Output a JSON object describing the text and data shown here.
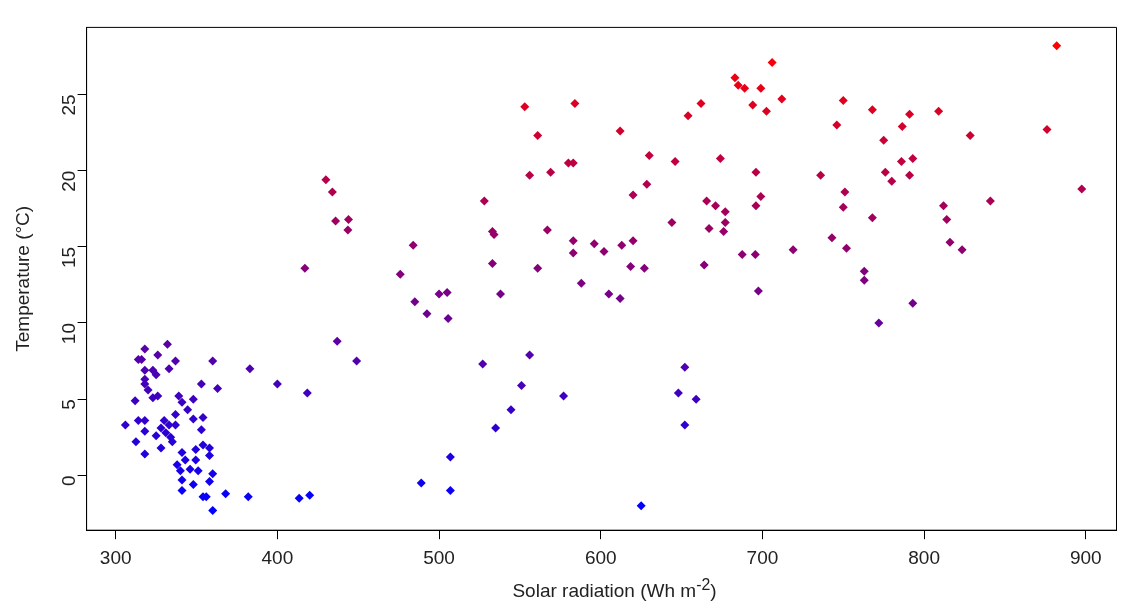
{
  "chart_data": {
    "type": "scatter",
    "xlabel": "Solar radiation (Wh m$^{-2}$)",
    "ylabel": "Temperature (°C)",
    "xlim": [
      282,
      919
    ],
    "xticks": [
      300,
      400,
      500,
      600,
      700,
      800,
      900
    ],
    "ylim": [
      -3.6,
      29.4
    ],
    "yticks": [
      0,
      5,
      10,
      15,
      20,
      25
    ],
    "grid": false,
    "legend": false,
    "marker": "diamond",
    "x": [
      318,
      332,
      314,
      316,
      326,
      337,
      360,
      383,
      437,
      449,
      333,
      323,
      318,
      325,
      318,
      318,
      353,
      363,
      400,
      418.5,
      320,
      323,
      326,
      312,
      339,
      341,
      348,
      344.5,
      337,
      354,
      348,
      306,
      314,
      318,
      330,
      333,
      328,
      337,
      318,
      353,
      331,
      325,
      334,
      312.5,
      335,
      328,
      318,
      341,
      354,
      358,
      349.5,
      358,
      343,
      349.5,
      338,
      346,
      351,
      340,
      360,
      341,
      358,
      348,
      341,
      368,
      354,
      356,
      382,
      360,
      413.5,
      420,
      556,
      569,
      580,
      583,
      646,
      628.5,
      620,
      528,
      533,
      534,
      567,
      644,
      484,
      583,
      596,
      602,
      613,
      620,
      583,
      533,
      561,
      618.5,
      627,
      476,
      588,
      485,
      500,
      505,
      538,
      605,
      612,
      492.5,
      505.6,
      527,
      556,
      551,
      577,
      544.5,
      535,
      652,
      648,
      659,
      652,
      507,
      489,
      507,
      625,
      430,
      434,
      436,
      444,
      443.6,
      417,
      553,
      584,
      561,
      612,
      630,
      674,
      696,
      665.5,
      671,
      677,
      677,
      676,
      667,
      696,
      699,
      662,
      654,
      694,
      702.5,
      712,
      687.5,
      695.6,
      719,
      664,
      697.5,
      882,
      706,
      683,
      685,
      689,
      699,
      750,
      768,
      746,
      791,
      786.5,
      809,
      775,
      828.5,
      876,
      786,
      793,
      776,
      791,
      780,
      736,
      897.5,
      751,
      750,
      768,
      812,
      841,
      814,
      816,
      823.5,
      743,
      752,
      763,
      763,
      793,
      772
    ],
    "values": [
      8.3,
      8.6,
      7.6,
      7.6,
      7.9,
      7.5,
      7.5,
      7.0,
      8.8,
      7.5,
      7.0,
      6.9,
      6.9,
      6.6,
      6.3,
      6.0,
      6.0,
      5.7,
      6.0,
      5.4,
      5.6,
      5.1,
      5.2,
      4.9,
      5.2,
      4.8,
      5.0,
      4.3,
      4.0,
      3.8,
      3.7,
      3.3,
      3.6,
      3.6,
      3.6,
      3.3,
      3.1,
      3.3,
      2.9,
      3.0,
      2.8,
      2.6,
      2.5,
      2.2,
      2.2,
      1.8,
      1.4,
      1.5,
      2.0,
      1.8,
      1.7,
      1.3,
      1.0,
      1.0,
      0.7,
      0.4,
      0.3,
      0.3,
      0.1,
      -0.3,
      -0.4,
      -0.6,
      -1.0,
      -1.2,
      -1.4,
      -1.4,
      -1.4,
      -2.3,
      -1.5,
      -1.3,
      19.7,
      19.9,
      20.5,
      20.5,
      20.6,
      19.1,
      18.4,
      18.0,
      16.0,
      15.8,
      16.1,
      16.6,
      15.1,
      15.4,
      15.2,
      14.7,
      15.1,
      15.4,
      14.6,
      13.9,
      13.6,
      13.7,
      13.6,
      13.2,
      12.6,
      11.4,
      11.9,
      12.0,
      11.9,
      11.9,
      11.6,
      10.6,
      10.3,
      7.3,
      7.9,
      5.9,
      5.2,
      4.3,
      3.1,
      7.1,
      5.4,
      5.0,
      3.3,
      1.2,
      -0.5,
      -1.0,
      -2.0,
      19.4,
      18.6,
      16.7,
      16.8,
      16.1,
      13.6,
      24.2,
      24.4,
      22.3,
      22.6,
      21.0,
      20.8,
      19.9,
      18.0,
      17.7,
      17.3,
      16.6,
      16.0,
      16.2,
      17.7,
      18.3,
      24.4,
      23.6,
      24.3,
      23.9,
      24.7,
      14.5,
      14.5,
      14.8,
      13.8,
      12.1,
      28.2,
      27.1,
      26.1,
      25.6,
      25.4,
      25.4,
      24.6,
      24.0,
      23.0,
      23.7,
      22.9,
      23.9,
      22.0,
      22.3,
      22.7,
      20.6,
      20.8,
      19.9,
      19.7,
      19.3,
      19.7,
      18.8,
      18.6,
      17.6,
      16.9,
      17.7,
      18.0,
      16.8,
      15.3,
      14.8,
      15.6,
      14.9,
      13.4,
      12.8,
      11.3,
      10.0
    ],
    "colors": [
      "#5900a6",
      "#5b00a4",
      "#5300ac",
      "#5300ac",
      "#5500aa",
      "#5200ad",
      "#5200ad",
      "#4e00b1",
      "#5d00a2",
      "#5200ad",
      "#4e00b1",
      "#4d00b2",
      "#4d00b2",
      "#4a00b5",
      "#4800b7",
      "#4500ba",
      "#4500ba",
      "#4300bc",
      "#4500ba",
      "#4000bf",
      "#4200bd",
      "#3e00c1",
      "#3f00c0",
      "#3c00c3",
      "#3f00c0",
      "#3b00c4",
      "#3d00c2",
      "#3700c8",
      "#3500ca",
      "#3300cc",
      "#3200cd",
      "#2f00d0",
      "#3100ce",
      "#3100ce",
      "#3100ce",
      "#2f00d0",
      "#2d00d2",
      "#2f00d0",
      "#2b00d4",
      "#2c00d3",
      "#2b00d4",
      "#2900d6",
      "#2800d7",
      "#2600d9",
      "#2600d9",
      "#2200dd",
      "#1f00e0",
      "#2000df",
      "#2400db",
      "#2200dd",
      "#2100de",
      "#1e00e1",
      "#1c00e3",
      "#1c00e3",
      "#1900e6",
      "#1700e8",
      "#1600e9",
      "#1600e9",
      "#1400eb",
      "#1100ee",
      "#1000ef",
      "#0e00f1",
      "#0b00f4",
      "#0900f6",
      "#0800f7",
      "#0800f7",
      "#0800f7",
      "#0000ff",
      "#0700f8",
      "#0800f7",
      "#b80047",
      "#ba0045",
      "#bf0040",
      "#bf0040",
      "#c0003f",
      "#b3004c",
      "#ad0052",
      "#aa0055",
      "#990066",
      "#970068",
      "#9a0065",
      "#9e0061",
      "#91006e",
      "#94006b",
      "#92006d",
      "#8e0071",
      "#91006e",
      "#94006b",
      "#8d0072",
      "#870078",
      "#85007a",
      "#860079",
      "#85007a",
      "#82007d",
      "#7d0082",
      "#73008c",
      "#770088",
      "#780087",
      "#770088",
      "#770088",
      "#74008b",
      "#6c0093",
      "#690096",
      "#5000af",
      "#5500aa",
      "#4500ba",
      "#3f00c0",
      "#3700c8",
      "#2d00d2",
      "#4f00b0",
      "#4000bf",
      "#3d00c2",
      "#2f00d0",
      "#1d00e2",
      "#0f00f0",
      "#0b00f4",
      "#0300fc",
      "#b5004a",
      "#af0050",
      "#9f0060",
      "#a0005f",
      "#9a0065",
      "#85007a",
      "#dd0022",
      "#df0020",
      "#ce0031",
      "#d0002f",
      "#c3003c",
      "#c1003e",
      "#ba0045",
      "#aa0055",
      "#a70058",
      "#a4005b",
      "#9e0061",
      "#990066",
      "#9b0064",
      "#a70058",
      "#ac0053",
      "#df0020",
      "#d80027",
      "#de0021",
      "#db0024",
      "#e2001d",
      "#8c0073",
      "#8c0073",
      "#8f0070",
      "#870078",
      "#780087",
      "#ff0000",
      "#f60009",
      "#ed0012",
      "#e90016",
      "#e80017",
      "#e80017",
      "#e1001e",
      "#dc0023",
      "#d3002c",
      "#d90026",
      "#d3002c",
      "#db0024",
      "#cb0034",
      "#ce0031",
      "#d1002e",
      "#c0003f",
      "#c1003e",
      "#ba0045",
      "#b80047",
      "#b5004a",
      "#b80047",
      "#b0004f",
      "#af0050",
      "#a60059",
      "#a0005f",
      "#a70058",
      "#aa0055",
      "#a0005f",
      "#93006c",
      "#8f0070",
      "#960069",
      "#90006f",
      "#83007c",
      "#7e0081",
      "#72008d",
      "#670098"
    ]
  }
}
